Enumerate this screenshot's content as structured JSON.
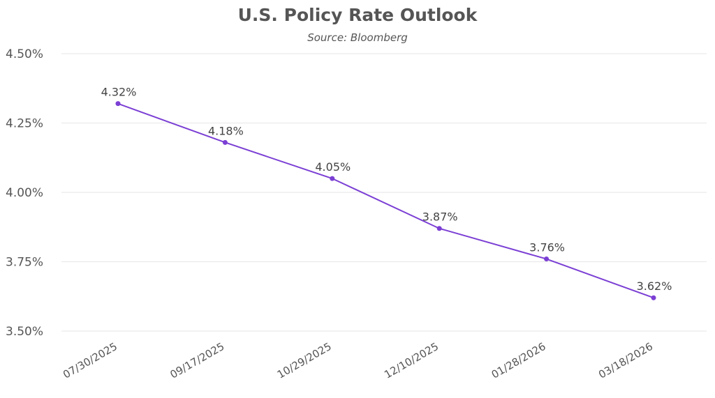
{
  "chart_data": {
    "type": "line",
    "title": "U.S. Policy Rate Outlook",
    "subtitle": "Source: Bloomberg",
    "xlabel": "",
    "ylabel": "",
    "categories": [
      "07/30/2025",
      "09/17/2025",
      "10/29/2025",
      "12/10/2025",
      "01/28/2026",
      "03/18/2026"
    ],
    "series": [
      {
        "values": [
          4.32,
          4.18,
          4.05,
          3.87,
          3.76,
          3.62
        ],
        "data_labels": [
          "4.32%",
          "4.18%",
          "4.05%",
          "3.87%",
          "3.76%",
          "3.62%"
        ],
        "color": "#7b3fd4"
      }
    ],
    "ylim": [
      3.5,
      4.5
    ],
    "yticks": [
      3.5,
      3.75,
      4.0,
      4.25,
      4.5
    ],
    "ytick_labels": [
      "3.50%",
      "3.75%",
      "4.00%",
      "4.25%",
      "4.50%"
    ],
    "grid": "horizontal",
    "legend": "none"
  },
  "colors": {
    "line": "#7b3fd4",
    "grid": "#e6e6e6",
    "text": "#555555"
  }
}
